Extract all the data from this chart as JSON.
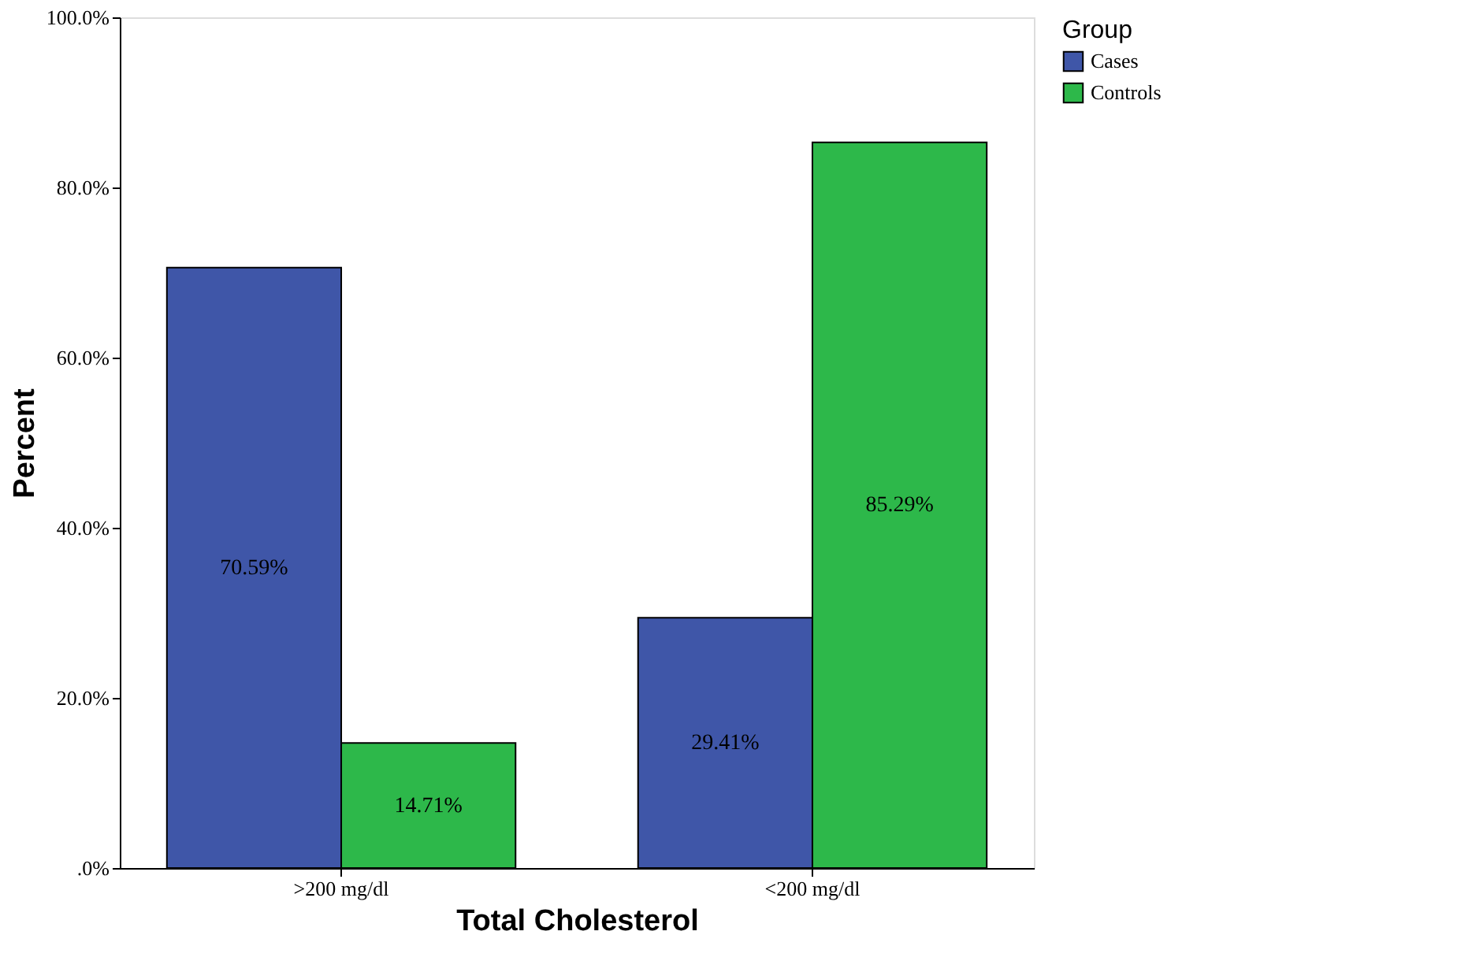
{
  "chart_data": {
    "type": "bar",
    "xlabel": "Total Cholesterol",
    "ylabel": "Percent",
    "legend_title": "Group",
    "legend": "right",
    "categories": [
      ">200 mg/dl",
      "<200 mg/dl"
    ],
    "series": [
      {
        "name": "Cases",
        "color": "#3f56a8",
        "values": [
          70.59,
          29.41
        ],
        "value_labels": [
          "70.59%",
          "29.41%"
        ]
      },
      {
        "name": "Controls",
        "color": "#2db84a",
        "values": [
          14.71,
          85.29
        ],
        "value_labels": [
          "14.71%",
          "85.29%"
        ]
      }
    ],
    "ylim": [
      0,
      100
    ],
    "yticks": [
      {
        "value": 0,
        "label": ".0%"
      },
      {
        "value": 20,
        "label": "20.0%"
      },
      {
        "value": 40,
        "label": "40.0%"
      },
      {
        "value": 60,
        "label": "60.0%"
      },
      {
        "value": 80,
        "label": "80.0%"
      },
      {
        "value": 100,
        "label": "100.0%"
      }
    ],
    "grid": false
  }
}
